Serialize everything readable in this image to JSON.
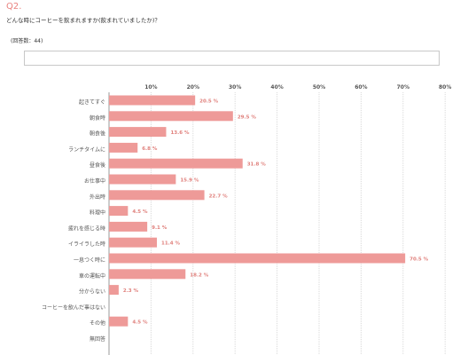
{
  "question": {
    "number": "Q2.",
    "text": "どんな時にコーヒーを飲まれますか(飲まれていましたか)？",
    "responses": "(回答数：44)"
  },
  "colors": {
    "bar": "#ee9a98",
    "value_label": "#e0807c",
    "grid": "#d9d9d9",
    "accent": "#e9827f"
  },
  "chart_data": {
    "type": "bar",
    "orientation": "horizontal",
    "title": "",
    "xlabel": "",
    "ylabel": "",
    "xlim": [
      0,
      80
    ],
    "ticks": [
      "10%",
      "20%",
      "30%",
      "40%",
      "50%",
      "60%",
      "70%",
      "80%"
    ],
    "grid": true,
    "categories": [
      "起きてすぐ",
      "朝食時",
      "朝食後",
      "ランチタイムに",
      "昼食後",
      "お仕事中",
      "外出時",
      "料理中",
      "疲れを感じる時",
      "イライラした時",
      "一息つく時に",
      "車の運転中",
      "分からない",
      "コーヒーを飲んだ事はない",
      "その他",
      "無回答"
    ],
    "values": [
      20.5,
      29.5,
      13.6,
      6.8,
      31.8,
      15.9,
      22.7,
      4.5,
      9.1,
      11.4,
      70.5,
      18.2,
      2.3,
      null,
      4.5,
      null
    ],
    "value_labels": [
      "20.5 %",
      "29.5 %",
      "13.6 %",
      "6.8 %",
      "31.8 %",
      "15.9 %",
      "22.7 %",
      "4.5 %",
      "9.1 %",
      "11.4 %",
      "70.5 %",
      "18.2 %",
      "2.3 %",
      "",
      "4.5 %",
      ""
    ]
  }
}
